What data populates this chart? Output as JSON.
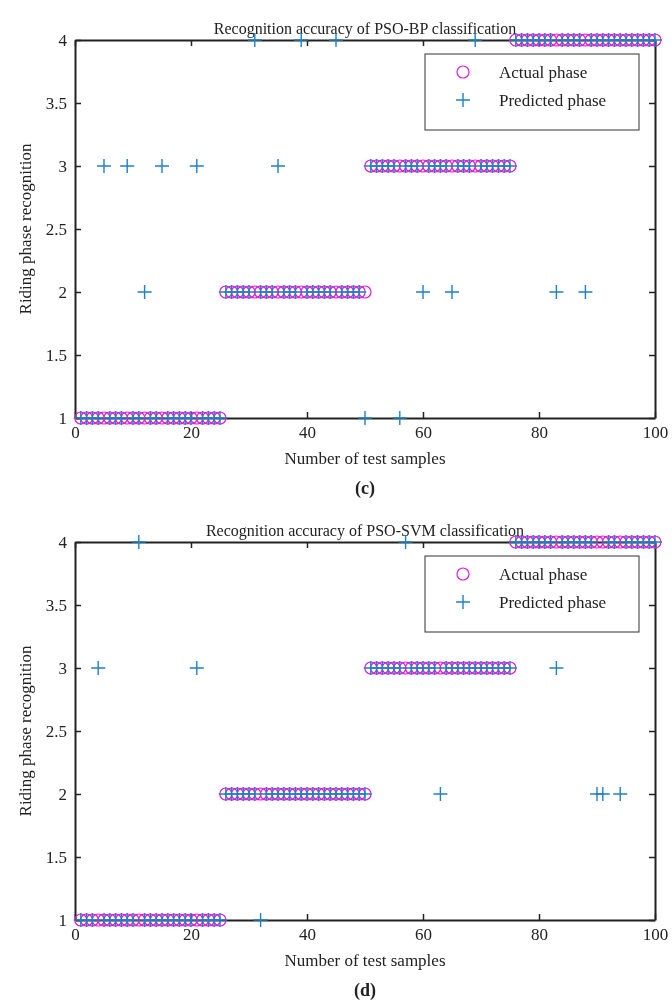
{
  "chart_data": [
    {
      "type": "scatter",
      "title": "Recognition accuracy of PSO-BP classification",
      "xlabel": "Number of test samples",
      "ylabel": "Riding phase recognition",
      "annotations": [
        "(c)"
      ],
      "x": [
        1,
        2,
        3,
        4,
        5,
        6,
        7,
        8,
        9,
        10,
        11,
        12,
        13,
        14,
        15,
        16,
        17,
        18,
        19,
        20,
        21,
        22,
        23,
        24,
        25,
        26,
        27,
        28,
        29,
        30,
        31,
        32,
        33,
        34,
        35,
        36,
        37,
        38,
        39,
        40,
        41,
        42,
        43,
        44,
        45,
        46,
        47,
        48,
        49,
        50,
        51,
        52,
        53,
        54,
        55,
        56,
        57,
        58,
        59,
        60,
        61,
        62,
        63,
        64,
        65,
        66,
        67,
        68,
        69,
        70,
        71,
        72,
        73,
        74,
        75,
        76,
        77,
        78,
        79,
        80,
        81,
        82,
        83,
        84,
        85,
        86,
        87,
        88,
        89,
        90,
        91,
        92,
        93,
        94,
        95,
        96,
        97,
        98,
        99,
        100
      ],
      "series": [
        {
          "name": "Actual phase",
          "color": "#e619d4",
          "marker": "circle",
          "values": [
            1,
            1,
            1,
            1,
            1,
            1,
            1,
            1,
            1,
            1,
            1,
            1,
            1,
            1,
            1,
            1,
            1,
            1,
            1,
            1,
            1,
            1,
            1,
            1,
            1,
            2,
            2,
            2,
            2,
            2,
            2,
            2,
            2,
            2,
            2,
            2,
            2,
            2,
            2,
            2,
            2,
            2,
            2,
            2,
            2,
            2,
            2,
            2,
            2,
            2,
            3,
            3,
            3,
            3,
            3,
            3,
            3,
            3,
            3,
            3,
            3,
            3,
            3,
            3,
            3,
            3,
            3,
            3,
            3,
            3,
            3,
            3,
            3,
            3,
            3,
            4,
            4,
            4,
            4,
            4,
            4,
            4,
            4,
            4,
            4,
            4,
            4,
            4,
            4,
            4,
            4,
            4,
            4,
            4,
            4,
            4,
            4,
            4,
            4,
            4
          ]
        },
        {
          "name": "Predicted phase",
          "color": "#1f80c8",
          "marker": "cross",
          "values": [
            1,
            1,
            1,
            1,
            3,
            1,
            1,
            1,
            3,
            1,
            1,
            2,
            1,
            1,
            3,
            1,
            1,
            1,
            1,
            1,
            3,
            1,
            1,
            1,
            1,
            2,
            2,
            2,
            2,
            2,
            4,
            2,
            2,
            2,
            3,
            2,
            2,
            2,
            4,
            2,
            2,
            2,
            2,
            2,
            4,
            2,
            2,
            2,
            2,
            1,
            3,
            3,
            3,
            3,
            3,
            1,
            3,
            3,
            3,
            2,
            3,
            3,
            3,
            3,
            2,
            3,
            3,
            3,
            4,
            3,
            3,
            3,
            3,
            3,
            3,
            4,
            4,
            4,
            4,
            4,
            4,
            4,
            2,
            4,
            4,
            4,
            4,
            2,
            4,
            4,
            4,
            4,
            4,
            4,
            4,
            4,
            4,
            4,
            4,
            4
          ]
        }
      ],
      "xlim": [
        0,
        100
      ],
      "xticks": [
        0,
        20,
        40,
        60,
        80,
        100
      ],
      "ylim": [
        1,
        4
      ],
      "yticks": [
        1,
        1.5,
        2,
        2.5,
        3,
        3.5,
        4
      ],
      "legend": "top right",
      "grid": false
    },
    {
      "type": "scatter",
      "title": "Recognition accuracy of PSO-SVM classification",
      "xlabel": "Number of test samples",
      "ylabel": "Riding phase recognition",
      "annotations": [
        "(d)"
      ],
      "x": [
        1,
        2,
        3,
        4,
        5,
        6,
        7,
        8,
        9,
        10,
        11,
        12,
        13,
        14,
        15,
        16,
        17,
        18,
        19,
        20,
        21,
        22,
        23,
        24,
        25,
        26,
        27,
        28,
        29,
        30,
        31,
        32,
        33,
        34,
        35,
        36,
        37,
        38,
        39,
        40,
        41,
        42,
        43,
        44,
        45,
        46,
        47,
        48,
        49,
        50,
        51,
        52,
        53,
        54,
        55,
        56,
        57,
        58,
        59,
        60,
        61,
        62,
        63,
        64,
        65,
        66,
        67,
        68,
        69,
        70,
        71,
        72,
        73,
        74,
        75,
        76,
        77,
        78,
        79,
        80,
        81,
        82,
        83,
        84,
        85,
        86,
        87,
        88,
        89,
        90,
        91,
        92,
        93,
        94,
        95,
        96,
        97,
        98,
        99,
        100
      ],
      "series": [
        {
          "name": "Actual phase",
          "color": "#e619d4",
          "marker": "circle",
          "values": [
            1,
            1,
            1,
            1,
            1,
            1,
            1,
            1,
            1,
            1,
            1,
            1,
            1,
            1,
            1,
            1,
            1,
            1,
            1,
            1,
            1,
            1,
            1,
            1,
            1,
            2,
            2,
            2,
            2,
            2,
            2,
            2,
            2,
            2,
            2,
            2,
            2,
            2,
            2,
            2,
            2,
            2,
            2,
            2,
            2,
            2,
            2,
            2,
            2,
            2,
            3,
            3,
            3,
            3,
            3,
            3,
            3,
            3,
            3,
            3,
            3,
            3,
            3,
            3,
            3,
            3,
            3,
            3,
            3,
            3,
            3,
            3,
            3,
            3,
            3,
            4,
            4,
            4,
            4,
            4,
            4,
            4,
            4,
            4,
            4,
            4,
            4,
            4,
            4,
            4,
            4,
            4,
            4,
            4,
            4,
            4,
            4,
            4,
            4,
            4
          ]
        },
        {
          "name": "Predicted phase",
          "color": "#1f80c8",
          "marker": "cross",
          "values": [
            1,
            1,
            1,
            3,
            1,
            1,
            1,
            1,
            1,
            1,
            4,
            1,
            1,
            1,
            1,
            1,
            1,
            1,
            1,
            1,
            3,
            1,
            1,
            1,
            1,
            2,
            2,
            2,
            2,
            2,
            2,
            1,
            2,
            2,
            2,
            2,
            2,
            2,
            2,
            2,
            2,
            2,
            2,
            2,
            2,
            2,
            2,
            2,
            2,
            2,
            3,
            3,
            3,
            3,
            3,
            3,
            4,
            3,
            3,
            3,
            3,
            3,
            2,
            3,
            3,
            3,
            3,
            3,
            3,
            3,
            3,
            3,
            3,
            3,
            3,
            4,
            4,
            4,
            4,
            4,
            4,
            4,
            3,
            4,
            4,
            4,
            4,
            4,
            4,
            2,
            2,
            4,
            4,
            2,
            4,
            4,
            4,
            4,
            4,
            4
          ]
        }
      ],
      "xlim": [
        0,
        100
      ],
      "xticks": [
        0,
        20,
        40,
        60,
        80,
        100
      ],
      "ylim": [
        1,
        4
      ],
      "yticks": [
        1,
        1.5,
        2,
        2.5,
        3,
        3.5,
        4
      ],
      "legend": "top right",
      "grid": false
    }
  ]
}
